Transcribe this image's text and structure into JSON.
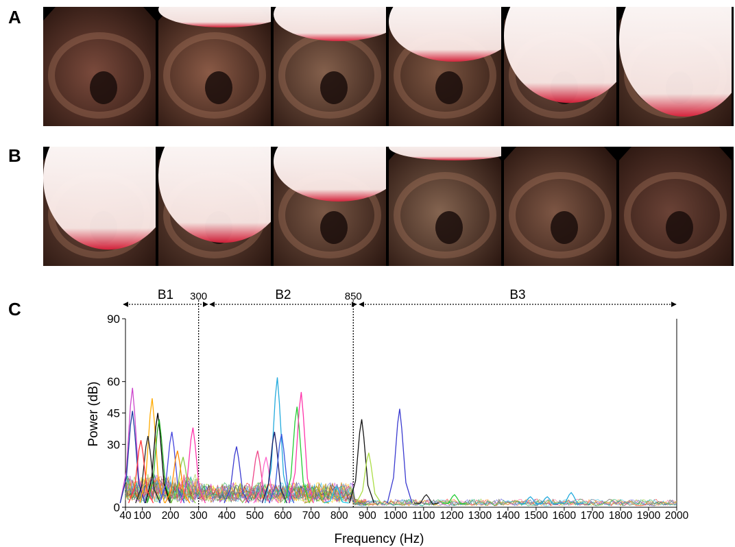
{
  "panels": {
    "a": "A",
    "b": "B",
    "c": "C"
  },
  "row_a": [
    {
      "glare": 0.0,
      "tone": "#7a4a3c"
    },
    {
      "glare": 0.2,
      "tone": "#8a5a46"
    },
    {
      "glare": 0.3,
      "tone": "#84604c"
    },
    {
      "glare": 0.45,
      "tone": "#7d5642"
    },
    {
      "glare": 0.75,
      "tone": "#6e4c3e"
    },
    {
      "glare": 0.85,
      "tone": "#6a4a3a"
    }
  ],
  "row_b": [
    {
      "glare": 0.8,
      "tone": "#6e4a3c"
    },
    {
      "glare": 0.75,
      "tone": "#725040"
    },
    {
      "glare": 0.45,
      "tone": "#7a5846"
    },
    {
      "glare": 0.15,
      "tone": "#846450"
    },
    {
      "glare": 0.05,
      "tone": "#7d5644"
    },
    {
      "glare": 0.0,
      "tone": "#6a4236"
    }
  ],
  "chart_data": {
    "type": "line",
    "xlabel": "Frequency (Hz)",
    "ylabel": "Power (dB)",
    "xlim": [
      40,
      2000
    ],
    "ylim": [
      0,
      90
    ],
    "x_ticks": [
      40,
      100,
      200,
      300,
      400,
      500,
      600,
      700,
      800,
      900,
      1000,
      1100,
      1200,
      1300,
      1400,
      1500,
      1600,
      1700,
      1800,
      1900,
      2000
    ],
    "x_tick_labels": [
      "40",
      "100",
      "200",
      "300",
      "400",
      "500",
      "600",
      "700",
      "800",
      "900",
      "1000",
      "1100",
      "1200",
      "1300",
      "1400",
      "1500",
      "1600",
      "1700",
      "1800",
      "1900",
      "2000"
    ],
    "y_ticks": [
      0,
      30,
      45,
      60,
      90
    ],
    "y_tick_labels": [
      "0",
      "30",
      "45",
      "60",
      "90"
    ],
    "bands": [
      {
        "label": "B1",
        "from": 40,
        "to": 300
      },
      {
        "label": "B2",
        "from": 300,
        "to": 850
      },
      {
        "label": "B3",
        "from": 850,
        "to": 2000
      }
    ],
    "boundaries": [
      {
        "value": 300,
        "label": "300"
      },
      {
        "value": 850,
        "label": "850"
      }
    ],
    "peaks": [
      {
        "color": "#cc44cc",
        "x": 65,
        "y": 57
      },
      {
        "color": "#1a3aa0",
        "x": 65,
        "y": 46
      },
      {
        "color": "#ffaa00",
        "x": 135,
        "y": 52
      },
      {
        "color": "#000000",
        "x": 155,
        "y": 45
      },
      {
        "color": "#22aa22",
        "x": 160,
        "y": 42
      },
      {
        "color": "#222222",
        "x": 120,
        "y": 34
      },
      {
        "color": "#ff3333",
        "x": 95,
        "y": 32
      },
      {
        "color": "#4444dd",
        "x": 205,
        "y": 36
      },
      {
        "color": "#ff33aa",
        "x": 280,
        "y": 38
      },
      {
        "color": "#88cc44",
        "x": 245,
        "y": 24
      },
      {
        "color": "#ff8800",
        "x": 225,
        "y": 27
      },
      {
        "color": "#3a3ad0",
        "x": 435,
        "y": 29
      },
      {
        "color": "#ee4488",
        "x": 510,
        "y": 27
      },
      {
        "color": "#ff66cc",
        "x": 540,
        "y": 24
      },
      {
        "color": "#22aadd",
        "x": 580,
        "y": 62
      },
      {
        "color": "#1a1a66",
        "x": 570,
        "y": 36
      },
      {
        "color": "#3355dd",
        "x": 595,
        "y": 35
      },
      {
        "color": "#22cc33",
        "x": 650,
        "y": 48
      },
      {
        "color": "#ff33aa",
        "x": 665,
        "y": 55
      },
      {
        "color": "#aaaa22",
        "x": 720,
        "y": 10
      },
      {
        "color": "#22ccee",
        "x": 790,
        "y": 10
      },
      {
        "color": "#111111",
        "x": 880,
        "y": 42
      },
      {
        "color": "#aadd44",
        "x": 905,
        "y": 26
      },
      {
        "color": "#3a3ad0",
        "x": 1015,
        "y": 47
      },
      {
        "color": "#222222",
        "x": 1110,
        "y": 6
      },
      {
        "color": "#22cc33",
        "x": 1210,
        "y": 6
      },
      {
        "color": "#22aadd",
        "x": 1480,
        "y": 5
      },
      {
        "color": "#22aadd",
        "x": 1540,
        "y": 5
      },
      {
        "color": "#22aadd",
        "x": 1625,
        "y": 7
      }
    ]
  }
}
